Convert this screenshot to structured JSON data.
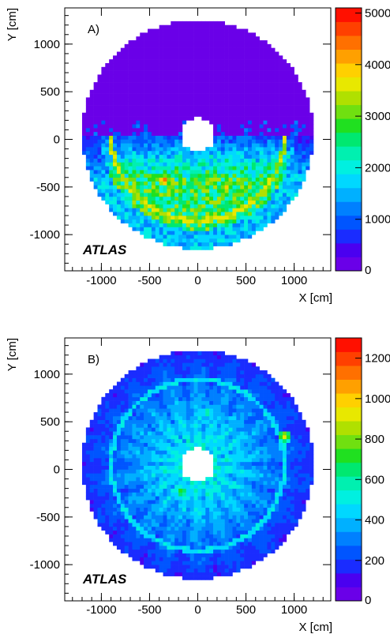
{
  "palette": [
    "#6a00e8",
    "#4a00f0",
    "#1a2cff",
    "#0055ff",
    "#0080ff",
    "#00b0ff",
    "#00d8ff",
    "#00f0e0",
    "#00f0b0",
    "#00e870",
    "#20e020",
    "#70e010",
    "#b0e000",
    "#e8e800",
    "#ffd000",
    "#ffa000",
    "#ff7000",
    "#ff4000",
    "#ff1000"
  ],
  "chart_data": [
    {
      "type": "heatmap",
      "panel_label": "A)",
      "xlabel": "X [cm]",
      "ylabel": "Y [cm]",
      "watermark": "ATLAS",
      "xlim": [
        -1380,
        1380
      ],
      "ylim": [
        -1380,
        1380
      ],
      "x_ticks": [
        -1000,
        -500,
        0,
        500,
        1000
      ],
      "x_tick_labels": [
        "-1000",
        "-500",
        "0",
        "500",
        "1000"
      ],
      "y_ticks": [
        -1000,
        -500,
        0,
        500,
        1000
      ],
      "y_tick_labels": [
        "-1000",
        "-500",
        "0",
        "500",
        "1000"
      ],
      "z_range": [
        0,
        5100
      ],
      "z_ticks": [
        0,
        1000,
        2000,
        3000,
        4000,
        5000
      ],
      "z_tick_labels": [
        "0",
        "1000",
        "2000",
        "3000",
        "4000",
        "5000"
      ],
      "detector": {
        "inner_radius": 180,
        "outer_radius": 1200,
        "center_y": 50
      },
      "features": {
        "upper_half_level": 200,
        "lower_half_peak": 2900,
        "lower_ring_radius": 900,
        "lower_ring_level": 3400,
        "hotspots": [
          {
            "x": -350,
            "y": -430,
            "value": 4900
          },
          {
            "x": 300,
            "y": -500,
            "value": 4000
          },
          {
            "x": -200,
            "y": -200,
            "value": 2700
          },
          {
            "x": 300,
            "y": -220,
            "value": 2600
          }
        ]
      }
    },
    {
      "type": "heatmap",
      "panel_label": "B)",
      "xlabel": "X [cm]",
      "ylabel": "Y [cm]",
      "watermark": "ATLAS",
      "xlim": [
        -1380,
        1380
      ],
      "ylim": [
        -1380,
        1380
      ],
      "x_ticks": [
        -1000,
        -500,
        0,
        500,
        1000
      ],
      "x_tick_labels": [
        "-1000",
        "-500",
        "0",
        "500",
        "1000"
      ],
      "y_ticks": [
        -1000,
        -500,
        0,
        500,
        1000
      ],
      "y_tick_labels": [
        "-1000",
        "-500",
        "0",
        "500",
        "1000"
      ],
      "z_range": [
        0,
        1300
      ],
      "z_ticks": [
        0,
        200,
        400,
        600,
        800,
        1000,
        1200
      ],
      "z_tick_labels": [
        "0",
        "200",
        "400",
        "600",
        "800",
        "1000",
        "1200"
      ],
      "detector": {
        "inner_radius": 180,
        "outer_radius": 1200,
        "center_y": 50
      },
      "features": {
        "inner_level": 450,
        "outer_level": 150,
        "ring_radius": 900,
        "ring_level": 450,
        "hotspots": [
          {
            "x": -170,
            "y": -230,
            "value": 800
          },
          {
            "x": 900,
            "y": 350,
            "value": 1000
          },
          {
            "x": 100,
            "y": 600,
            "value": 700
          }
        ]
      }
    }
  ]
}
